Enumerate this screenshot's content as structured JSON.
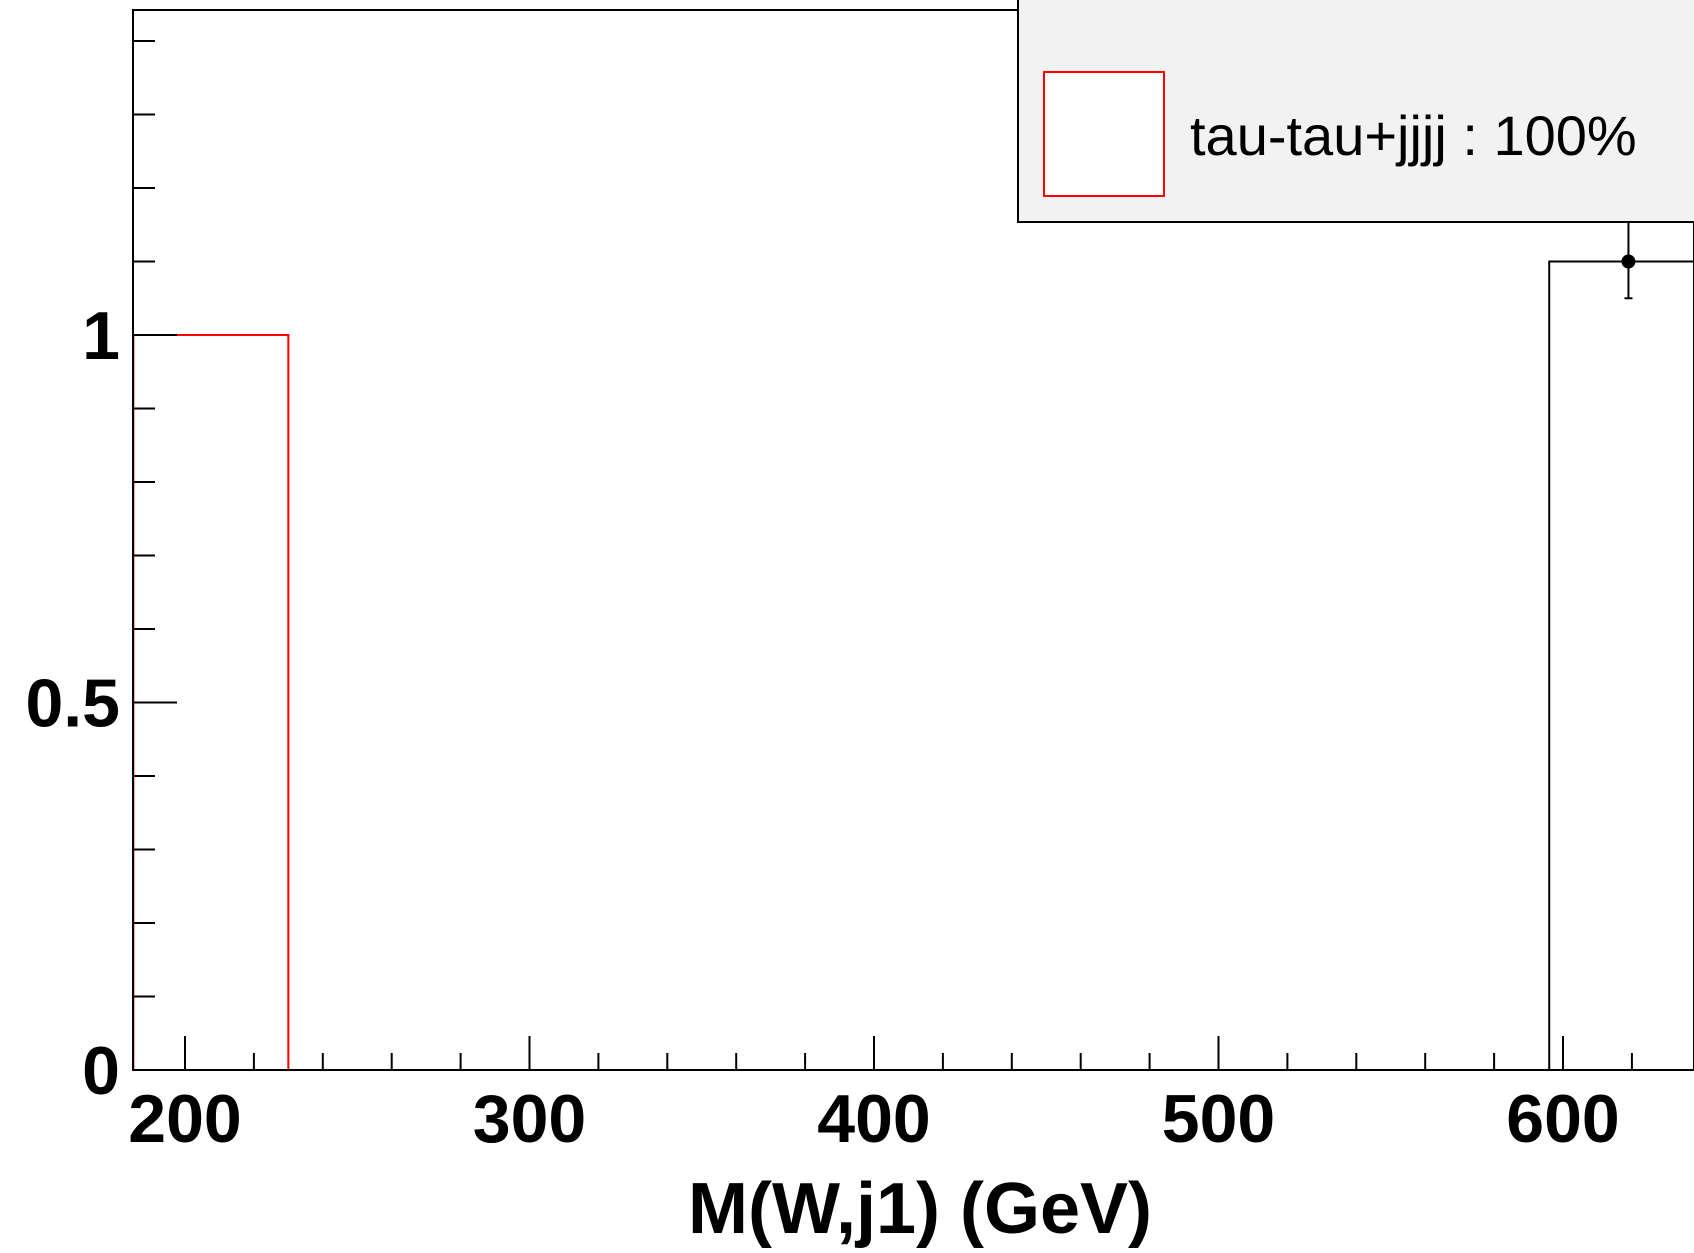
{
  "chart_data": {
    "type": "histogram",
    "xlabel": "M(W,j1) (GeV)",
    "ylabel": "",
    "xlim": [
      185,
      700
    ],
    "ylim": [
      0,
      1.44
    ],
    "x_ticks": [
      "200",
      "300",
      "400",
      "500",
      "600"
    ],
    "y_ticks": [
      "0",
      "0.5",
      "1"
    ],
    "series": [
      {
        "name": "tau-tau+jjjj : 100%",
        "color": "#ff0000",
        "style": "filled-outline",
        "bins": [
          {
            "x_low": 185,
            "x_high": 230,
            "value": 1.0
          }
        ]
      },
      {
        "color": "#000000",
        "style": "outline-with-markers",
        "bins": [
          {
            "x_low": 596,
            "x_high": 700,
            "value": 1.1
          }
        ],
        "points": [
          {
            "x": 619,
            "y": 1.1,
            "err_low": 1.05,
            "err_high": 1.5
          }
        ]
      }
    ],
    "legend": {
      "placement": "top-right",
      "background": "#f2f2f2",
      "entries": [
        "tau-tau+jjjj : 100%"
      ]
    },
    "grid": false
  }
}
